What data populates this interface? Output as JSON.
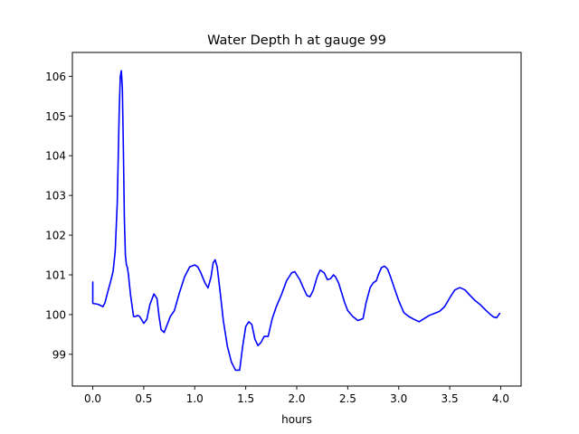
{
  "chart_data": {
    "type": "line",
    "title": "Water Depth h at gauge 99",
    "xlabel": "hours",
    "ylabel": "",
    "xlim": [
      -0.2,
      4.2
    ],
    "ylim": [
      98.2,
      106.6
    ],
    "xticks": [
      0.0,
      0.5,
      1.0,
      1.5,
      2.0,
      2.5,
      3.0,
      3.5,
      4.0
    ],
    "xtick_labels": [
      "0.0",
      "0.5",
      "1.0",
      "1.5",
      "2.0",
      "2.5",
      "3.0",
      "3.5",
      "4.0"
    ],
    "yticks": [
      99,
      100,
      101,
      102,
      103,
      104,
      105,
      106
    ],
    "ytick_labels": [
      "99",
      "100",
      "101",
      "102",
      "103",
      "104",
      "105",
      "106"
    ],
    "grid": false,
    "line_color": "#0000ff",
    "series": [
      {
        "x": [
          0.0,
          0.0,
          0.005,
          0.05,
          0.1,
          0.12,
          0.15,
          0.18,
          0.2,
          0.22,
          0.24,
          0.25,
          0.26,
          0.27,
          0.28,
          0.29,
          0.3,
          0.31,
          0.32,
          0.33,
          0.34,
          0.35,
          0.37,
          0.4,
          0.42,
          0.44,
          0.46,
          0.5,
          0.53,
          0.56,
          0.6,
          0.63,
          0.65,
          0.67,
          0.7,
          0.73,
          0.76,
          0.8,
          0.85,
          0.9,
          0.95,
          1.0,
          1.03,
          1.06,
          1.1,
          1.13,
          1.16,
          1.18,
          1.2,
          1.22,
          1.25,
          1.28,
          1.32,
          1.36,
          1.4,
          1.44,
          1.47,
          1.5,
          1.53,
          1.56,
          1.59,
          1.62,
          1.65,
          1.68,
          1.72,
          1.76,
          1.8,
          1.85,
          1.9,
          1.95,
          1.98,
          2.0,
          2.03,
          2.06,
          2.1,
          2.13,
          2.16,
          2.2,
          2.23,
          2.27,
          2.3,
          2.33,
          2.36,
          2.38,
          2.41,
          2.44,
          2.47,
          2.5,
          2.55,
          2.6,
          2.65,
          2.68,
          2.72,
          2.75,
          2.78,
          2.8,
          2.83,
          2.86,
          2.89,
          2.92,
          2.95,
          3.0,
          3.05,
          3.1,
          3.15,
          3.2,
          3.25,
          3.3,
          3.35,
          3.4,
          3.45,
          3.5,
          3.55,
          3.6,
          3.65,
          3.7,
          3.75,
          3.8,
          3.85,
          3.9,
          3.93,
          3.96,
          3.99
        ],
        "values": [
          100.82,
          100.28,
          100.28,
          100.26,
          100.2,
          100.3,
          100.6,
          100.88,
          101.1,
          101.6,
          102.8,
          104.0,
          105.2,
          106.0,
          106.14,
          105.7,
          104.2,
          102.4,
          101.5,
          101.25,
          101.18,
          101.0,
          100.5,
          99.95,
          99.95,
          99.98,
          99.95,
          99.78,
          99.88,
          100.25,
          100.52,
          100.4,
          99.95,
          99.62,
          99.55,
          99.75,
          99.95,
          100.1,
          100.55,
          100.95,
          101.2,
          101.25,
          101.2,
          101.05,
          100.8,
          100.67,
          100.95,
          101.3,
          101.38,
          101.2,
          100.55,
          99.85,
          99.2,
          98.8,
          98.6,
          98.6,
          99.2,
          99.7,
          99.82,
          99.75,
          99.38,
          99.22,
          99.3,
          99.45,
          99.45,
          99.9,
          100.2,
          100.5,
          100.85,
          101.05,
          101.08,
          101.0,
          100.88,
          100.7,
          100.48,
          100.45,
          100.6,
          100.95,
          101.12,
          101.05,
          100.88,
          100.9,
          101.0,
          100.95,
          100.8,
          100.55,
          100.3,
          100.1,
          99.95,
          99.85,
          99.9,
          100.3,
          100.68,
          100.8,
          100.85,
          101.0,
          101.18,
          101.22,
          101.15,
          100.95,
          100.72,
          100.35,
          100.05,
          99.95,
          99.88,
          99.82,
          99.9,
          99.98,
          100.03,
          100.08,
          100.2,
          100.42,
          100.62,
          100.68,
          100.62,
          100.48,
          100.35,
          100.25,
          100.12,
          100.0,
          99.94,
          99.92,
          100.03
        ]
      }
    ]
  }
}
